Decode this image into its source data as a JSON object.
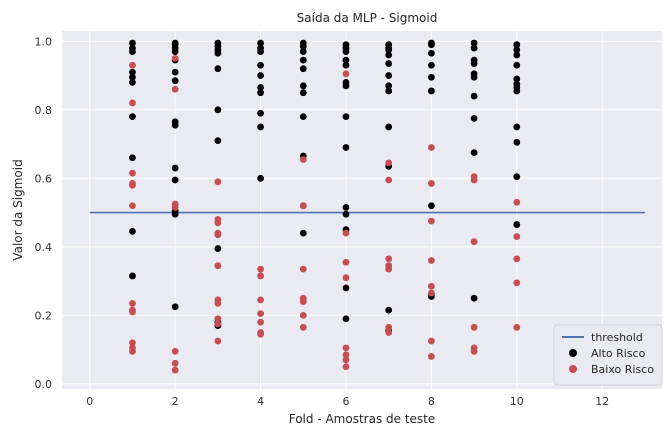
{
  "chart_data": {
    "type": "scatter",
    "title": "Saída da MLP - Sigmoid",
    "xlabel": "Fold - Amostras de teste",
    "ylabel": "Valor da Sigmoid",
    "xlim": [
      -0.65,
      13.4
    ],
    "ylim": [
      -0.015,
      1.03
    ],
    "xticks": [
      0,
      2,
      4,
      6,
      8,
      10,
      12
    ],
    "yticks": [
      0.0,
      0.2,
      0.4,
      0.6,
      0.8,
      1.0
    ],
    "xtick_labels": [
      "0",
      "2",
      "4",
      "6",
      "8",
      "10",
      "12"
    ],
    "ytick_labels": [
      "0.0",
      "0.2",
      "0.4",
      "0.6",
      "0.8",
      "1.0"
    ],
    "grid": true,
    "legend_position": "lower-right",
    "threshold": {
      "name": "threshold",
      "y": 0.5,
      "x": [
        0,
        13
      ],
      "color": "#4c72b0"
    },
    "series": [
      {
        "name": "Alto Risco",
        "color": "#000000",
        "points": [
          [
            1,
            0.995
          ],
          [
            1,
            0.98
          ],
          [
            1,
            0.97
          ],
          [
            1,
            0.91
          ],
          [
            1,
            0.895
          ],
          [
            1,
            0.88
          ],
          [
            1,
            0.78
          ],
          [
            1,
            0.66
          ],
          [
            1,
            0.445
          ],
          [
            1,
            0.315
          ],
          [
            2,
            0.995
          ],
          [
            2,
            0.99
          ],
          [
            2,
            0.98
          ],
          [
            2,
            0.97
          ],
          [
            2,
            0.945
          ],
          [
            2,
            0.91
          ],
          [
            2,
            0.885
          ],
          [
            2,
            0.765
          ],
          [
            2,
            0.755
          ],
          [
            2,
            0.63
          ],
          [
            2,
            0.595
          ],
          [
            2,
            0.505
          ],
          [
            2,
            0.495
          ],
          [
            2,
            0.225
          ],
          [
            3,
            0.995
          ],
          [
            3,
            0.985
          ],
          [
            3,
            0.975
          ],
          [
            3,
            0.965
          ],
          [
            3,
            0.92
          ],
          [
            3,
            0.8
          ],
          [
            3,
            0.71
          ],
          [
            3,
            0.395
          ],
          [
            3,
            0.18
          ],
          [
            3,
            0.17
          ],
          [
            4,
            0.995
          ],
          [
            4,
            0.98
          ],
          [
            4,
            0.97
          ],
          [
            4,
            0.93
          ],
          [
            4,
            0.9
          ],
          [
            4,
            0.865
          ],
          [
            4,
            0.85
          ],
          [
            4,
            0.79
          ],
          [
            4,
            0.75
          ],
          [
            4,
            0.6
          ],
          [
            5,
            0.995
          ],
          [
            5,
            0.985
          ],
          [
            5,
            0.97
          ],
          [
            5,
            0.945
          ],
          [
            5,
            0.92
          ],
          [
            5,
            0.87
          ],
          [
            5,
            0.85
          ],
          [
            5,
            0.78
          ],
          [
            5,
            0.665
          ],
          [
            5,
            0.52
          ],
          [
            5,
            0.44
          ],
          [
            6,
            0.99
          ],
          [
            6,
            0.98
          ],
          [
            6,
            0.97
          ],
          [
            6,
            0.945
          ],
          [
            6,
            0.93
          ],
          [
            6,
            0.88
          ],
          [
            6,
            0.87
          ],
          [
            6,
            0.78
          ],
          [
            6,
            0.69
          ],
          [
            6,
            0.515
          ],
          [
            6,
            0.495
          ],
          [
            6,
            0.45
          ],
          [
            6,
            0.28
          ],
          [
            6,
            0.19
          ],
          [
            7,
            0.99
          ],
          [
            7,
            0.98
          ],
          [
            7,
            0.975
          ],
          [
            7,
            0.96
          ],
          [
            7,
            0.935
          ],
          [
            7,
            0.9
          ],
          [
            7,
            0.87
          ],
          [
            7,
            0.855
          ],
          [
            7,
            0.75
          ],
          [
            7,
            0.635
          ],
          [
            7,
            0.215
          ],
          [
            7,
            0.155
          ],
          [
            8,
            0.995
          ],
          [
            8,
            0.99
          ],
          [
            8,
            0.965
          ],
          [
            8,
            0.93
          ],
          [
            8,
            0.895
          ],
          [
            8,
            0.855
          ],
          [
            8,
            0.52
          ],
          [
            8,
            0.26
          ],
          [
            8,
            0.255
          ],
          [
            9,
            0.995
          ],
          [
            9,
            0.98
          ],
          [
            9,
            0.945
          ],
          [
            9,
            0.935
          ],
          [
            9,
            0.905
          ],
          [
            9,
            0.895
          ],
          [
            9,
            0.84
          ],
          [
            9,
            0.775
          ],
          [
            9,
            0.675
          ],
          [
            9,
            0.25
          ],
          [
            10,
            0.99
          ],
          [
            10,
            0.975
          ],
          [
            10,
            0.96
          ],
          [
            10,
            0.93
          ],
          [
            10,
            0.89
          ],
          [
            10,
            0.875
          ],
          [
            10,
            0.865
          ],
          [
            10,
            0.855
          ],
          [
            10,
            0.75
          ],
          [
            10,
            0.705
          ],
          [
            10,
            0.605
          ],
          [
            10,
            0.465
          ]
        ]
      },
      {
        "name": "Baixo Risco",
        "color": "#c44e52",
        "points": [
          [
            1,
            0.93
          ],
          [
            1,
            0.82
          ],
          [
            1,
            0.615
          ],
          [
            1,
            0.585
          ],
          [
            1,
            0.58
          ],
          [
            1,
            0.52
          ],
          [
            1,
            0.235
          ],
          [
            1,
            0.215
          ],
          [
            1,
            0.21
          ],
          [
            1,
            0.12
          ],
          [
            1,
            0.105
          ],
          [
            1,
            0.095
          ],
          [
            2,
            0.95
          ],
          [
            2,
            0.86
          ],
          [
            2,
            0.525
          ],
          [
            2,
            0.515
          ],
          [
            2,
            0.095
          ],
          [
            2,
            0.06
          ],
          [
            2,
            0.04
          ],
          [
            3,
            0.59
          ],
          [
            3,
            0.48
          ],
          [
            3,
            0.47
          ],
          [
            3,
            0.44
          ],
          [
            3,
            0.435
          ],
          [
            3,
            0.345
          ],
          [
            3,
            0.245
          ],
          [
            3,
            0.235
          ],
          [
            3,
            0.19
          ],
          [
            3,
            0.175
          ],
          [
            3,
            0.125
          ],
          [
            4,
            0.335
          ],
          [
            4,
            0.315
          ],
          [
            4,
            0.245
          ],
          [
            4,
            0.205
          ],
          [
            4,
            0.18
          ],
          [
            4,
            0.15
          ],
          [
            4,
            0.145
          ],
          [
            5,
            0.655
          ],
          [
            5,
            0.52
          ],
          [
            5,
            0.335
          ],
          [
            5,
            0.25
          ],
          [
            5,
            0.24
          ],
          [
            5,
            0.2
          ],
          [
            5,
            0.165
          ],
          [
            6,
            0.905
          ],
          [
            6,
            0.44
          ],
          [
            6,
            0.355
          ],
          [
            6,
            0.31
          ],
          [
            6,
            0.105
          ],
          [
            6,
            0.085
          ],
          [
            6,
            0.07
          ],
          [
            6,
            0.05
          ],
          [
            7,
            0.645
          ],
          [
            7,
            0.595
          ],
          [
            7,
            0.365
          ],
          [
            7,
            0.345
          ],
          [
            7,
            0.335
          ],
          [
            7,
            0.165
          ],
          [
            7,
            0.15
          ],
          [
            8,
            0.69
          ],
          [
            8,
            0.585
          ],
          [
            8,
            0.475
          ],
          [
            8,
            0.36
          ],
          [
            8,
            0.285
          ],
          [
            8,
            0.265
          ],
          [
            8,
            0.125
          ],
          [
            8,
            0.08
          ],
          [
            9,
            0.605
          ],
          [
            9,
            0.595
          ],
          [
            9,
            0.415
          ],
          [
            9,
            0.165
          ],
          [
            9,
            0.105
          ],
          [
            9,
            0.095
          ],
          [
            10,
            0.53
          ],
          [
            10,
            0.43
          ],
          [
            10,
            0.365
          ],
          [
            10,
            0.295
          ],
          [
            10,
            0.165
          ]
        ]
      }
    ]
  }
}
